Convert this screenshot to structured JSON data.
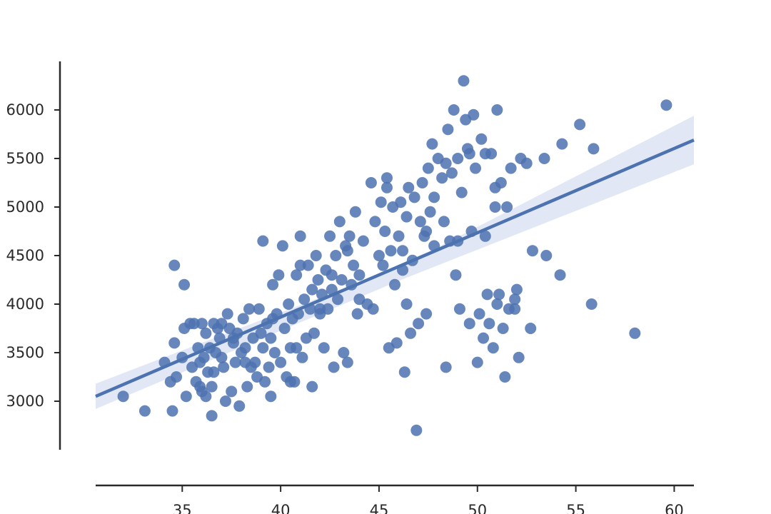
{
  "chart_data": {
    "type": "scatter",
    "title": "",
    "xlabel": "",
    "ylabel": "",
    "xlim": [
      30.6,
      61.0
    ],
    "ylim": [
      2500,
      6500
    ],
    "x_ticks": [
      35,
      40,
      45,
      50,
      55,
      60
    ],
    "y_ticks": [
      3000,
      3500,
      4000,
      4500,
      5000,
      5500,
      6000
    ],
    "grid": false,
    "legend": "none",
    "colors": {
      "points": "#4c72b0",
      "regression_line": "#4c72b0",
      "confidence_band": "#d7dff0",
      "axes": "#2a2a2a"
    },
    "points": [
      [
        32.0,
        3050
      ],
      [
        33.1,
        2900
      ],
      [
        34.1,
        3400
      ],
      [
        34.4,
        3200
      ],
      [
        34.5,
        2900
      ],
      [
        34.6,
        3600
      ],
      [
        34.6,
        4400
      ],
      [
        34.7,
        3250
      ],
      [
        35.0,
        3450
      ],
      [
        35.1,
        3750
      ],
      [
        35.1,
        4200
      ],
      [
        35.2,
        3050
      ],
      [
        35.4,
        3800
      ],
      [
        35.5,
        3350
      ],
      [
        35.6,
        3800
      ],
      [
        35.7,
        3200
      ],
      [
        35.8,
        3550
      ],
      [
        35.9,
        3150
      ],
      [
        36.0,
        3800
      ],
      [
        36.0,
        3100
      ],
      [
        36.1,
        3450
      ],
      [
        36.2,
        3700
      ],
      [
        36.3,
        3300
      ],
      [
        36.4,
        3550
      ],
      [
        36.5,
        2850
      ],
      [
        36.5,
        3150
      ],
      [
        36.6,
        3800
      ],
      [
        36.6,
        3300
      ],
      [
        36.7,
        3500
      ],
      [
        36.8,
        3750
      ],
      [
        36.9,
        3650
      ],
      [
        37.0,
        3450
      ],
      [
        37.1,
        3350
      ],
      [
        37.2,
        3000
      ],
      [
        37.3,
        3900
      ],
      [
        37.4,
        3750
      ],
      [
        37.5,
        3100
      ],
      [
        37.6,
        3650
      ],
      [
        37.7,
        3400
      ],
      [
        37.8,
        3700
      ],
      [
        37.9,
        2950
      ],
      [
        38.0,
        3500
      ],
      [
        38.1,
        3850
      ],
      [
        38.2,
        3550
      ],
      [
        38.3,
        3150
      ],
      [
        38.4,
        3950
      ],
      [
        38.5,
        3350
      ],
      [
        38.6,
        3650
      ],
      [
        38.7,
        3400
      ],
      [
        38.8,
        3250
      ],
      [
        38.9,
        3950
      ],
      [
        39.0,
        3700
      ],
      [
        39.1,
        4650
      ],
      [
        39.1,
        3550
      ],
      [
        39.2,
        3200
      ],
      [
        39.3,
        3800
      ],
      [
        39.4,
        3350
      ],
      [
        39.5,
        3050
      ],
      [
        39.6,
        4200
      ],
      [
        39.7,
        3500
      ],
      [
        39.8,
        3900
      ],
      [
        39.9,
        4300
      ],
      [
        40.0,
        3400
      ],
      [
        40.1,
        4600
      ],
      [
        40.2,
        3750
      ],
      [
        40.3,
        3250
      ],
      [
        40.4,
        4000
      ],
      [
        40.5,
        3550
      ],
      [
        40.6,
        3850
      ],
      [
        40.7,
        3200
      ],
      [
        40.8,
        4300
      ],
      [
        40.9,
        3900
      ],
      [
        41.0,
        4700
      ],
      [
        41.1,
        3450
      ],
      [
        41.2,
        4050
      ],
      [
        41.3,
        3650
      ],
      [
        41.4,
        4400
      ],
      [
        41.5,
        3950
      ],
      [
        41.6,
        4150
      ],
      [
        41.7,
        3700
      ],
      [
        41.8,
        4500
      ],
      [
        41.9,
        4250
      ],
      [
        42.0,
        3900
      ],
      [
        42.1,
        4100
      ],
      [
        42.2,
        3550
      ],
      [
        42.3,
        4350
      ],
      [
        42.4,
        3950
      ],
      [
        42.5,
        4700
      ],
      [
        42.6,
        4150
      ],
      [
        42.7,
        3350
      ],
      [
        42.8,
        4500
      ],
      [
        42.9,
        4050
      ],
      [
        43.0,
        4850
      ],
      [
        43.1,
        4250
      ],
      [
        43.2,
        3500
      ],
      [
        43.3,
        4600
      ],
      [
        43.4,
        3400
      ],
      [
        43.5,
        4700
      ],
      [
        43.6,
        4200
      ],
      [
        43.7,
        4400
      ],
      [
        43.8,
        4950
      ],
      [
        43.9,
        3900
      ],
      [
        44.0,
        4300
      ],
      [
        44.2,
        4650
      ],
      [
        44.4,
        4000
      ],
      [
        44.6,
        5250
      ],
      [
        44.8,
        4850
      ],
      [
        45.0,
        4500
      ],
      [
        45.1,
        5050
      ],
      [
        45.2,
        4400
      ],
      [
        45.3,
        4750
      ],
      [
        45.4,
        5200
      ],
      [
        45.5,
        3550
      ],
      [
        45.6,
        4550
      ],
      [
        45.7,
        5000
      ],
      [
        45.8,
        4200
      ],
      [
        45.9,
        3600
      ],
      [
        46.0,
        4700
      ],
      [
        46.1,
        5050
      ],
      [
        46.2,
        4350
      ],
      [
        46.3,
        3300
      ],
      [
        46.4,
        4900
      ],
      [
        46.5,
        5200
      ],
      [
        46.6,
        3700
      ],
      [
        46.7,
        4450
      ],
      [
        46.8,
        5100
      ],
      [
        46.9,
        2700
      ],
      [
        47.0,
        3800
      ],
      [
        47.1,
        4850
      ],
      [
        47.2,
        5250
      ],
      [
        47.3,
        4700
      ],
      [
        47.4,
        3900
      ],
      [
        47.5,
        5400
      ],
      [
        47.6,
        4950
      ],
      [
        47.7,
        5650
      ],
      [
        47.8,
        4600
      ],
      [
        48.0,
        5500
      ],
      [
        48.2,
        5300
      ],
      [
        48.3,
        4850
      ],
      [
        48.4,
        3350
      ],
      [
        48.5,
        5800
      ],
      [
        48.6,
        4650
      ],
      [
        48.7,
        5350
      ],
      [
        48.8,
        6000
      ],
      [
        48.9,
        4300
      ],
      [
        49.0,
        5500
      ],
      [
        49.1,
        3950
      ],
      [
        49.2,
        5150
      ],
      [
        49.3,
        6300
      ],
      [
        49.4,
        5900
      ],
      [
        49.5,
        5600
      ],
      [
        49.6,
        3800
      ],
      [
        49.7,
        4750
      ],
      [
        49.8,
        5950
      ],
      [
        49.9,
        5400
      ],
      [
        50.0,
        3400
      ],
      [
        50.1,
        3900
      ],
      [
        50.2,
        5700
      ],
      [
        50.3,
        3650
      ],
      [
        50.4,
        5550
      ],
      [
        50.5,
        4100
      ],
      [
        50.6,
        3800
      ],
      [
        50.7,
        5550
      ],
      [
        50.8,
        3550
      ],
      [
        50.9,
        5000
      ],
      [
        51.0,
        6000
      ],
      [
        51.1,
        4100
      ],
      [
        51.2,
        5250
      ],
      [
        51.3,
        3750
      ],
      [
        51.4,
        3250
      ],
      [
        51.5,
        5000
      ],
      [
        51.6,
        3950
      ],
      [
        51.7,
        5400
      ],
      [
        51.9,
        3950
      ],
      [
        52.0,
        4150
      ],
      [
        52.1,
        3450
      ],
      [
        52.2,
        5500
      ],
      [
        52.5,
        5450
      ],
      [
        52.7,
        3750
      ],
      [
        52.8,
        4550
      ],
      [
        53.4,
        5500
      ],
      [
        53.5,
        4500
      ],
      [
        54.2,
        4300
      ],
      [
        54.3,
        5650
      ],
      [
        55.2,
        5850
      ],
      [
        55.8,
        4000
      ],
      [
        55.9,
        5600
      ],
      [
        58.0,
        3700
      ],
      [
        59.6,
        6050
      ],
      [
        36.2,
        3050
      ],
      [
        37.0,
        3800
      ],
      [
        38.2,
        3400
      ],
      [
        39.5,
        3650
      ],
      [
        40.5,
        3200
      ],
      [
        41.0,
        4400
      ],
      [
        42.0,
        3950
      ],
      [
        43.4,
        4550
      ],
      [
        44.7,
        3950
      ],
      [
        46.4,
        4000
      ],
      [
        47.4,
        4750
      ],
      [
        48.4,
        5450
      ],
      [
        49.6,
        5550
      ],
      [
        50.9,
        5200
      ],
      [
        51.9,
        4050
      ],
      [
        35.9,
        3400
      ],
      [
        37.6,
        3600
      ],
      [
        39.6,
        3850
      ],
      [
        40.8,
        3550
      ],
      [
        41.6,
        3150
      ],
      [
        42.6,
        4300
      ],
      [
        44.0,
        4050
      ],
      [
        45.4,
        5300
      ],
      [
        46.2,
        4550
      ],
      [
        47.8,
        5100
      ],
      [
        49.0,
        4650
      ],
      [
        50.4,
        4700
      ],
      [
        51.0,
        4000
      ]
    ],
    "regression": {
      "line": [
        [
          30.6,
          3050
        ],
        [
          61.0,
          5690
        ]
      ],
      "ci_upper": [
        [
          30.6,
          3180
        ],
        [
          46.0,
          4380
        ],
        [
          61.0,
          5940
        ]
      ],
      "ci_lower": [
        [
          30.6,
          2920
        ],
        [
          46.0,
          4240
        ],
        [
          61.0,
          5440
        ]
      ]
    }
  }
}
